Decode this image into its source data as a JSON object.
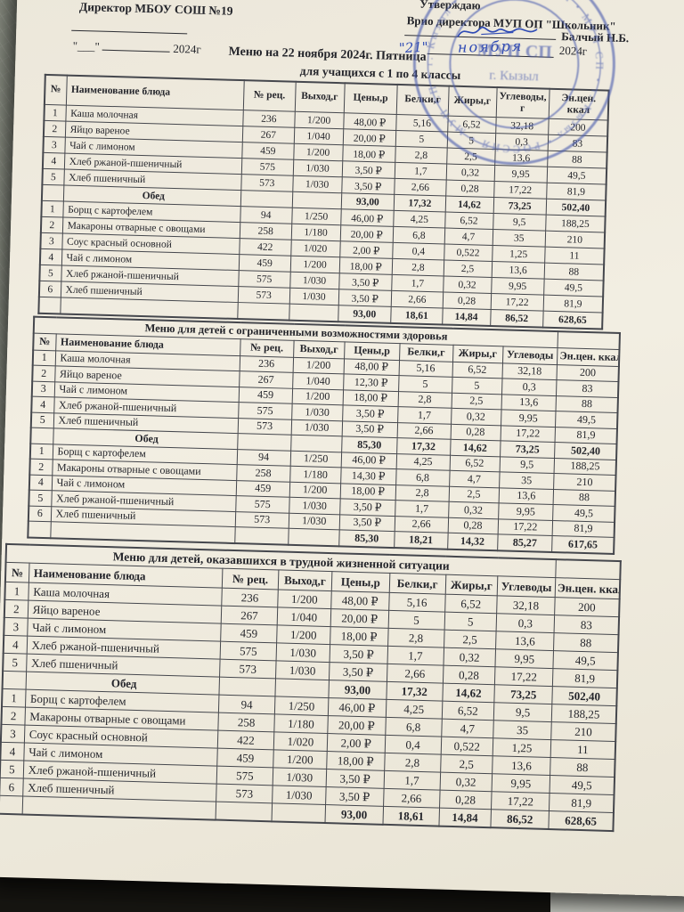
{
  "doc": {
    "header_left": {
      "director_line": "Директор МБОУ СОШ №19",
      "date_quotes": "\"___\"",
      "year": "2024г"
    },
    "header_right": {
      "approve": "Утверждаю",
      "position_line": "Врио директора МУП ОП \"Школьник\"",
      "signer_name": "Балчый Н.Б.",
      "handwritten_day": "\"21\"",
      "handwritten_month": "ноября",
      "year": "2024г"
    },
    "stamp": {
      "ring_text": "РОССИЯ • МУП СП • г. Кызыл • РОССИЯ • МУП СП • г. Кызыл •",
      "center_line1": "МУП СП",
      "center_line2": "г. Кызыл",
      "color": "#4a5cae"
    },
    "title": "Меню на 22 ноября 2024г. Пятница",
    "subtitle": "для учащихся с 1 по 4 классы"
  },
  "tables": [
    {
      "name": "menu-pupils-1-4",
      "title": "",
      "columns": [
        "№",
        "Наименование блюда",
        "№ рец.",
        "Выход,г",
        "Цены,р",
        "Белки,г",
        "Жиры,г",
        "Углеводы, г",
        "Эн.цен. ккал"
      ],
      "rows": [
        {
          "type": "dish",
          "cells": [
            "1",
            "Каша молочная",
            "236",
            "1/200",
            "48,00 ₽",
            "5,16",
            "6,52",
            "32,18",
            "200"
          ]
        },
        {
          "type": "dish",
          "cells": [
            "2",
            "Яйцо вареное",
            "267",
            "1/040",
            "20,00 ₽",
            "5",
            "5",
            "0,3",
            "83"
          ]
        },
        {
          "type": "dish",
          "cells": [
            "3",
            "Чай с лимоном",
            "459",
            "1/200",
            "18,00 ₽",
            "2,8",
            "2,5",
            "13,6",
            "88"
          ]
        },
        {
          "type": "dish",
          "cells": [
            "4",
            "Хлеб ржаной-пшеничный",
            "575",
            "1/030",
            "3,50 ₽",
            "1,7",
            "0,32",
            "9,95",
            "49,5"
          ]
        },
        {
          "type": "dish",
          "cells": [
            "5",
            "Хлеб пшеничный",
            "573",
            "1/030",
            "3,50 ₽",
            "2,66",
            "0,28",
            "17,22",
            "81,9"
          ]
        },
        {
          "type": "section",
          "cells": [
            "",
            "Обед",
            "",
            "",
            "93,00",
            "17,32",
            "14,62",
            "73,25",
            "502,40"
          ]
        },
        {
          "type": "dish",
          "cells": [
            "1",
            "Борщ с картофелем",
            "94",
            "1/250",
            "46,00 ₽",
            "4,25",
            "6,52",
            "9,5",
            "188,25"
          ]
        },
        {
          "type": "dish",
          "cells": [
            "2",
            "Макароны отварные с овощами",
            "258",
            "1/180",
            "20,00 ₽",
            "6,8",
            "4,7",
            "35",
            "210"
          ]
        },
        {
          "type": "dish",
          "cells": [
            "3",
            "Соус красный основной",
            "422",
            "1/020",
            "2,00 ₽",
            "0,4",
            "0,522",
            "1,25",
            "11"
          ]
        },
        {
          "type": "dish",
          "cells": [
            "4",
            "Чай с лимоном",
            "459",
            "1/200",
            "18,00 ₽",
            "2,8",
            "2,5",
            "13,6",
            "88"
          ]
        },
        {
          "type": "dish",
          "cells": [
            "5",
            "Хлеб ржаной-пшеничный",
            "575",
            "1/030",
            "3,50 ₽",
            "1,7",
            "0,32",
            "9,95",
            "49,5"
          ]
        },
        {
          "type": "dish",
          "cells": [
            "6",
            "Хлеб пшеничный",
            "573",
            "1/030",
            "3,50 ₽",
            "2,66",
            "0,28",
            "17,22",
            "81,9"
          ]
        },
        {
          "type": "total",
          "cells": [
            "",
            "",
            "",
            "",
            "93,00",
            "18,61",
            "14,84",
            "86,52",
            "628,65"
          ]
        }
      ]
    },
    {
      "name": "menu-children-disabilities",
      "title": "Меню для детей с ограниченными возможностями здоровья",
      "columns": [
        "№",
        "Наименование блюда",
        "№ рец.",
        "Выход,г",
        "Цены,р",
        "Белки,г",
        "Жиры,г",
        "Углеводы",
        "Эн.цен. ккал"
      ],
      "rows": [
        {
          "type": "dish",
          "cells": [
            "1",
            "Каша молочная",
            "236",
            "1/200",
            "48,00 ₽",
            "5,16",
            "6,52",
            "32,18",
            "200"
          ]
        },
        {
          "type": "dish",
          "cells": [
            "2",
            "Яйцо вареное",
            "267",
            "1/040",
            "12,30 ₽",
            "5",
            "5",
            "0,3",
            "83"
          ]
        },
        {
          "type": "dish",
          "cells": [
            "3",
            "Чай с лимоном",
            "459",
            "1/200",
            "18,00 ₽",
            "2,8",
            "2,5",
            "13,6",
            "88"
          ]
        },
        {
          "type": "dish",
          "cells": [
            "4",
            "Хлеб ржаной-пшеничный",
            "575",
            "1/030",
            "3,50 ₽",
            "1,7",
            "0,32",
            "9,95",
            "49,5"
          ]
        },
        {
          "type": "dish",
          "cells": [
            "5",
            "Хлеб пшеничный",
            "573",
            "1/030",
            "3,50 ₽",
            "2,66",
            "0,28",
            "17,22",
            "81,9"
          ]
        },
        {
          "type": "section",
          "cells": [
            "",
            "Обед",
            "",
            "",
            "85,30",
            "17,32",
            "14,62",
            "73,25",
            "502,40"
          ]
        },
        {
          "type": "dish",
          "cells": [
            "1",
            "Борщ с картофелем",
            "94",
            "1/250",
            "46,00 ₽",
            "4,25",
            "6,52",
            "9,5",
            "188,25"
          ]
        },
        {
          "type": "dish",
          "cells": [
            "2",
            "Макароны отварные с овощами",
            "258",
            "1/180",
            "14,30 ₽",
            "6,8",
            "4,7",
            "35",
            "210"
          ]
        },
        {
          "type": "dish",
          "cells": [
            "4",
            "Чай с лимоном",
            "459",
            "1/200",
            "18,00 ₽",
            "2,8",
            "2,5",
            "13,6",
            "88"
          ]
        },
        {
          "type": "dish",
          "cells": [
            "5",
            "Хлеб ржаной-пшеничный",
            "575",
            "1/030",
            "3,50 ₽",
            "1,7",
            "0,32",
            "9,95",
            "49,5"
          ]
        },
        {
          "type": "dish",
          "cells": [
            "6",
            "Хлеб пшеничный",
            "573",
            "1/030",
            "3,50 ₽",
            "2,66",
            "0,28",
            "17,22",
            "81,9"
          ]
        },
        {
          "type": "total",
          "cells": [
            "",
            "",
            "",
            "",
            "85,30",
            "18,21",
            "14,32",
            "85,27",
            "617,65"
          ]
        }
      ]
    },
    {
      "name": "menu-children-difficult-situation",
      "title": "Меню для детей, оказавшихся в трудной жизненной ситуации",
      "columns": [
        "№",
        "Наименование блюда",
        "№ рец.",
        "Выход,г",
        "Цены,р",
        "Белки,г",
        "Жиры,г",
        "Углеводы",
        "Эн.цен. ккал"
      ],
      "rows": [
        {
          "type": "dish",
          "cells": [
            "1",
            "Каша молочная",
            "236",
            "1/200",
            "48,00 ₽",
            "5,16",
            "6,52",
            "32,18",
            "200"
          ]
        },
        {
          "type": "dish",
          "cells": [
            "2",
            "Яйцо вареное",
            "267",
            "1/040",
            "20,00 ₽",
            "5",
            "5",
            "0,3",
            "83"
          ]
        },
        {
          "type": "dish",
          "cells": [
            "3",
            "Чай с лимоном",
            "459",
            "1/200",
            "18,00 ₽",
            "2,8",
            "2,5",
            "13,6",
            "88"
          ]
        },
        {
          "type": "dish",
          "cells": [
            "4",
            "Хлеб ржаной-пшеничный",
            "575",
            "1/030",
            "3,50 ₽",
            "1,7",
            "0,32",
            "9,95",
            "49,5"
          ]
        },
        {
          "type": "dish",
          "cells": [
            "5",
            "Хлеб пшеничный",
            "573",
            "1/030",
            "3,50 ₽",
            "2,66",
            "0,28",
            "17,22",
            "81,9"
          ]
        },
        {
          "type": "section",
          "cells": [
            "",
            "Обед",
            "",
            "",
            "93,00",
            "17,32",
            "14,62",
            "73,25",
            "502,40"
          ]
        },
        {
          "type": "dish",
          "cells": [
            "1",
            "Борщ с картофелем",
            "94",
            "1/250",
            "46,00 ₽",
            "4,25",
            "6,52",
            "9,5",
            "188,25"
          ]
        },
        {
          "type": "dish",
          "cells": [
            "2",
            "Макароны отварные с овощами",
            "258",
            "1/180",
            "20,00 ₽",
            "6,8",
            "4,7",
            "35",
            "210"
          ]
        },
        {
          "type": "dish",
          "cells": [
            "3",
            "Соус красный основной",
            "422",
            "1/020",
            "2,00 ₽",
            "0,4",
            "0,522",
            "1,25",
            "11"
          ]
        },
        {
          "type": "dish",
          "cells": [
            "4",
            "Чай с лимоном",
            "459",
            "1/200",
            "18,00 ₽",
            "2,8",
            "2,5",
            "13,6",
            "88"
          ]
        },
        {
          "type": "dish",
          "cells": [
            "5",
            "Хлеб ржаной-пшеничный",
            "575",
            "1/030",
            "3,50 ₽",
            "1,7",
            "0,32",
            "9,95",
            "49,5"
          ]
        },
        {
          "type": "dish",
          "cells": [
            "6",
            "Хлеб пшеничный",
            "573",
            "1/030",
            "3,50 ₽",
            "2,66",
            "0,28",
            "17,22",
            "81,9"
          ]
        },
        {
          "type": "total",
          "cells": [
            "",
            "",
            "",
            "",
            "93,00",
            "18,61",
            "14,84",
            "86,52",
            "628,65"
          ]
        }
      ]
    }
  ]
}
